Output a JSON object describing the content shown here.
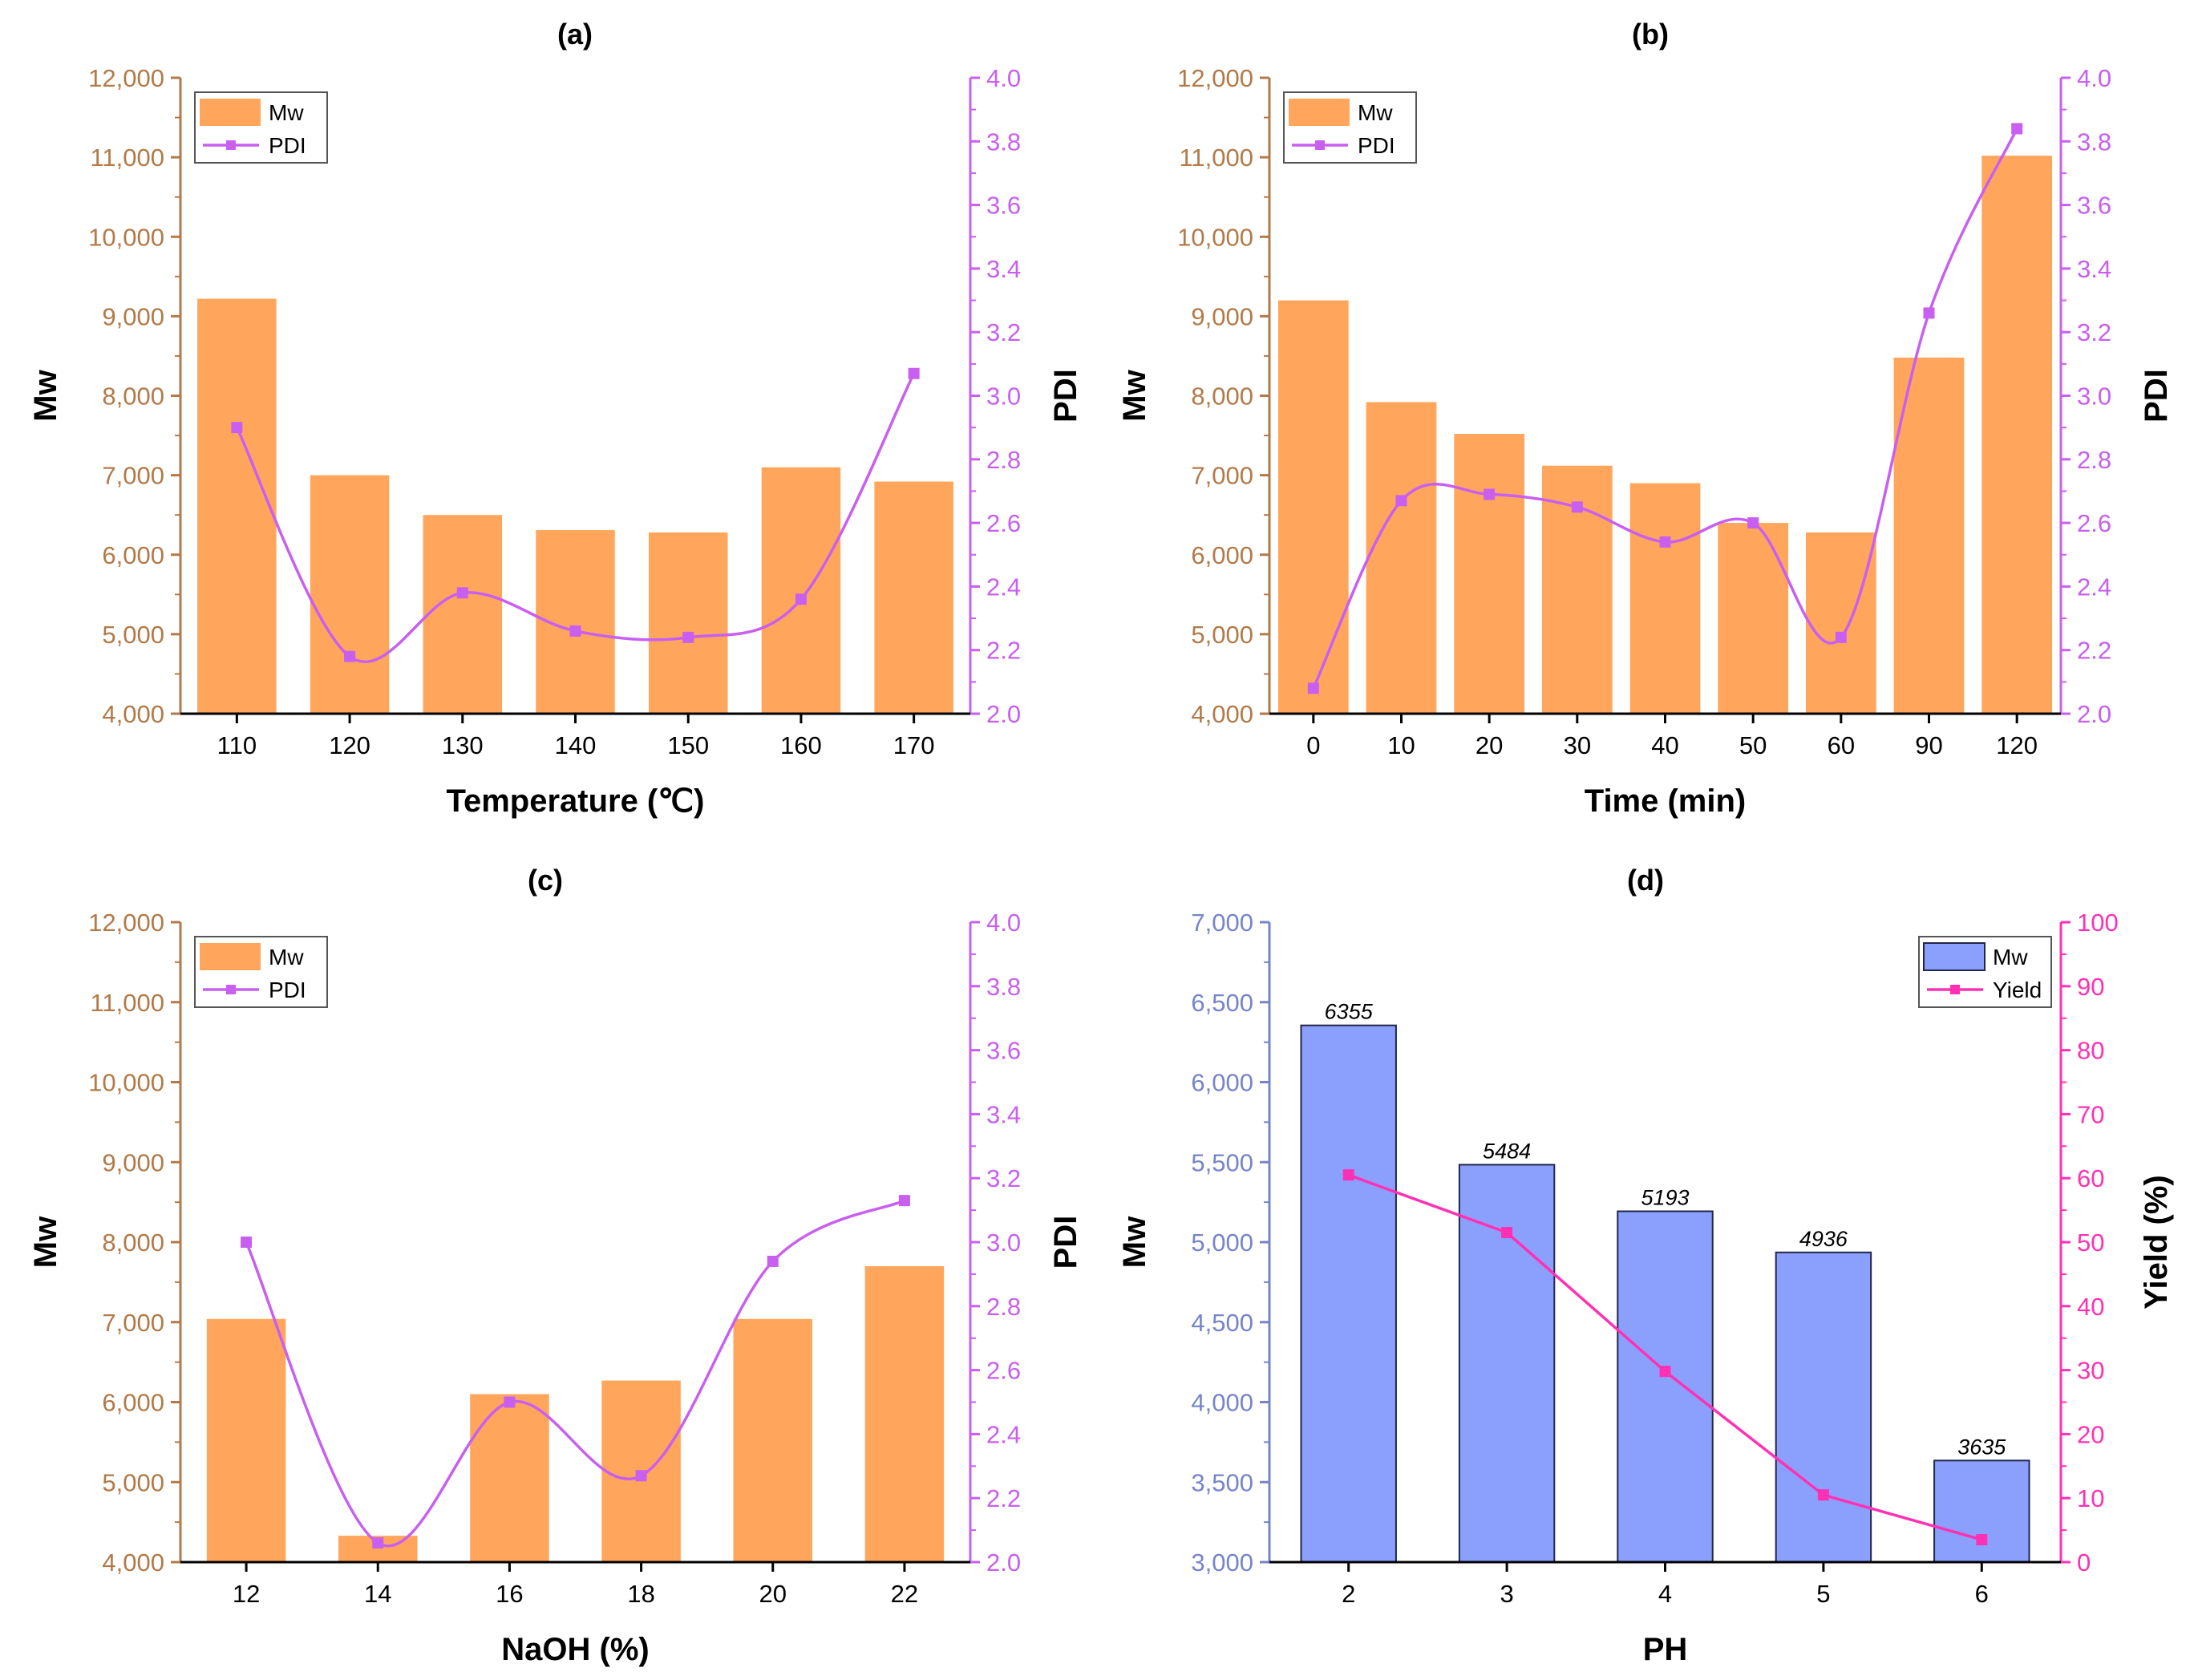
{
  "colors": {
    "bar_orange": "#ffa65c",
    "pdi_purple": "#c85ff0",
    "left_axis_brown": "#b27a48",
    "bar_blue": "#8aa0fc",
    "bar_blue_edge": "#22264a",
    "blue_axis": "#7585c9",
    "yield_pink": "#ff30b4",
    "black": "#000000"
  },
  "chart_data": [
    {
      "id": "a",
      "type": "bar",
      "title": "(a)",
      "xlabel": "Temperature (℃)",
      "ylabel": "Mw",
      "y2label": "PDI",
      "categories": [
        "110",
        "120",
        "130",
        "140",
        "150",
        "160",
        "170"
      ],
      "ylim": [
        4000,
        12000
      ],
      "yticks": [
        4000,
        5000,
        6000,
        7000,
        8000,
        9000,
        10000,
        11000,
        12000
      ],
      "y2lim": [
        2.0,
        4.0
      ],
      "y2ticks": [
        2.0,
        2.2,
        2.4,
        2.6,
        2.8,
        3.0,
        3.2,
        3.4,
        3.6,
        3.8,
        4.0
      ],
      "legend": [
        "Mw",
        "PDI"
      ],
      "legend_position": "top-left",
      "series": [
        {
          "name": "Mw",
          "kind": "bar",
          "axis": "left",
          "values": [
            9220,
            7000,
            6500,
            6310,
            6280,
            7100,
            6920
          ]
        },
        {
          "name": "PDI",
          "kind": "line",
          "axis": "right",
          "values": [
            2.9,
            2.18,
            2.38,
            2.26,
            2.24,
            2.36,
            3.07
          ]
        }
      ]
    },
    {
      "id": "b",
      "type": "bar",
      "title": "(b)",
      "xlabel": "Time (min)",
      "ylabel": "Mw",
      "y2label": "PDI",
      "categories": [
        "0",
        "10",
        "20",
        "30",
        "40",
        "50",
        "60",
        "90",
        "120"
      ],
      "ylim": [
        4000,
        12000
      ],
      "yticks": [
        4000,
        5000,
        6000,
        7000,
        8000,
        9000,
        10000,
        11000,
        12000
      ],
      "y2lim": [
        2.0,
        4.0
      ],
      "y2ticks": [
        2.0,
        2.2,
        2.4,
        2.6,
        2.8,
        3.0,
        3.2,
        3.4,
        3.6,
        3.8,
        4.0
      ],
      "legend": [
        "Mw",
        "PDI"
      ],
      "legend_position": "top-left",
      "series": [
        {
          "name": "Mw",
          "kind": "bar",
          "axis": "left",
          "values": [
            9200,
            7920,
            7520,
            7120,
            6900,
            6400,
            6280,
            8480,
            11020
          ]
        },
        {
          "name": "PDI",
          "kind": "line",
          "axis": "right",
          "values": [
            2.08,
            2.67,
            2.69,
            2.65,
            2.54,
            2.6,
            2.24,
            3.26,
            3.84
          ]
        }
      ]
    },
    {
      "id": "c",
      "type": "bar",
      "title": "(c)",
      "xlabel": "NaOH (%)",
      "ylabel": "Mw",
      "y2label": "PDI",
      "categories": [
        "12",
        "14",
        "16",
        "18",
        "20",
        "22"
      ],
      "ylim": [
        4000,
        12000
      ],
      "yticks": [
        4000,
        5000,
        6000,
        7000,
        8000,
        9000,
        10000,
        11000,
        12000
      ],
      "y2lim": [
        2.0,
        4.0
      ],
      "y2ticks": [
        2.0,
        2.2,
        2.4,
        2.6,
        2.8,
        3.0,
        3.2,
        3.4,
        3.6,
        3.8,
        4.0
      ],
      "legend": [
        "Mw",
        "PDI"
      ],
      "legend_position": "top-left",
      "series": [
        {
          "name": "Mw",
          "kind": "bar",
          "axis": "left",
          "values": [
            7040,
            4330,
            6100,
            6270,
            7040,
            7700
          ]
        },
        {
          "name": "PDI",
          "kind": "line",
          "axis": "right",
          "values": [
            3.0,
            2.06,
            2.5,
            2.27,
            2.94,
            3.13
          ]
        }
      ]
    },
    {
      "id": "d",
      "type": "bar",
      "title": "(d)",
      "xlabel": "PH",
      "ylabel": "Mw",
      "y2label": "Yield (%)",
      "categories": [
        "2",
        "3",
        "4",
        "5",
        "6"
      ],
      "ylim": [
        3000,
        7000
      ],
      "yticks": [
        3000,
        3500,
        4000,
        4500,
        5000,
        5500,
        6000,
        6500,
        7000
      ],
      "y2lim": [
        0,
        100
      ],
      "y2ticks": [
        0,
        10,
        20,
        30,
        40,
        50,
        60,
        70,
        80,
        90,
        100
      ],
      "legend": [
        "Mw",
        "Yield"
      ],
      "legend_position": "top-right",
      "data_labels": [
        "6355",
        "5484",
        "5193",
        "4936",
        "3635"
      ],
      "series": [
        {
          "name": "Mw",
          "kind": "bar",
          "axis": "left",
          "values": [
            6355,
            5484,
            5193,
            4936,
            3635
          ]
        },
        {
          "name": "Yield",
          "kind": "line",
          "axis": "right",
          "values": [
            60.5,
            51.5,
            29.8,
            10.5,
            3.5
          ]
        }
      ]
    }
  ]
}
